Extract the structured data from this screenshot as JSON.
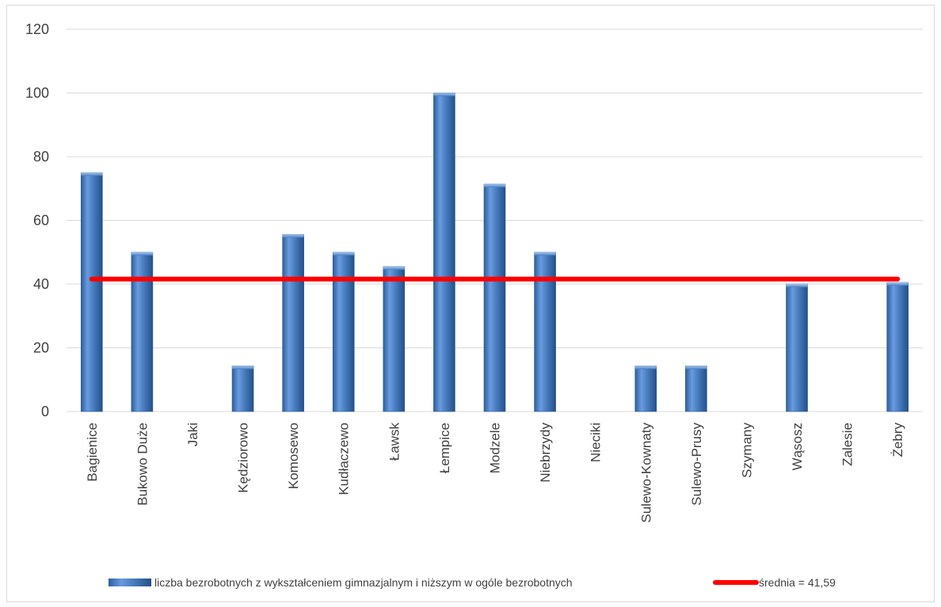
{
  "chart_data": {
    "type": "bar",
    "title": "",
    "xlabel": "",
    "ylabel": "",
    "ylim": [
      0,
      120
    ],
    "yticks": [
      0,
      20,
      40,
      60,
      80,
      100,
      120
    ],
    "grid": true,
    "legend_position": "bottom",
    "categories": [
      "Bagienice",
      "Bukowo Duże",
      "Jaki",
      "Kędziorowo",
      "Komosewo",
      "Kudłaczewo",
      "Ławsk",
      "Łempice",
      "Modzele",
      "Niebrzydy",
      "Nieciki",
      "Sulewo-Kownaty",
      "Sulewo-Prusy",
      "Szymany",
      "Wąsosz",
      "Zalesie",
      "Żebry"
    ],
    "series": [
      {
        "name": "liczba bezrobotnych z wykształceniem gimnazjalnym i niższym w ogóle bezrobotnych",
        "type": "bar",
        "color": "#4a7fc1",
        "values": [
          75,
          50,
          0,
          14.3,
          55.6,
          50,
          45.5,
          100,
          71.4,
          50,
          0,
          14.3,
          14.3,
          0,
          40,
          0,
          40.5
        ]
      },
      {
        "name": "średnia = 41,59",
        "type": "line",
        "color": "#ff0000",
        "value": 41.59
      }
    ]
  }
}
